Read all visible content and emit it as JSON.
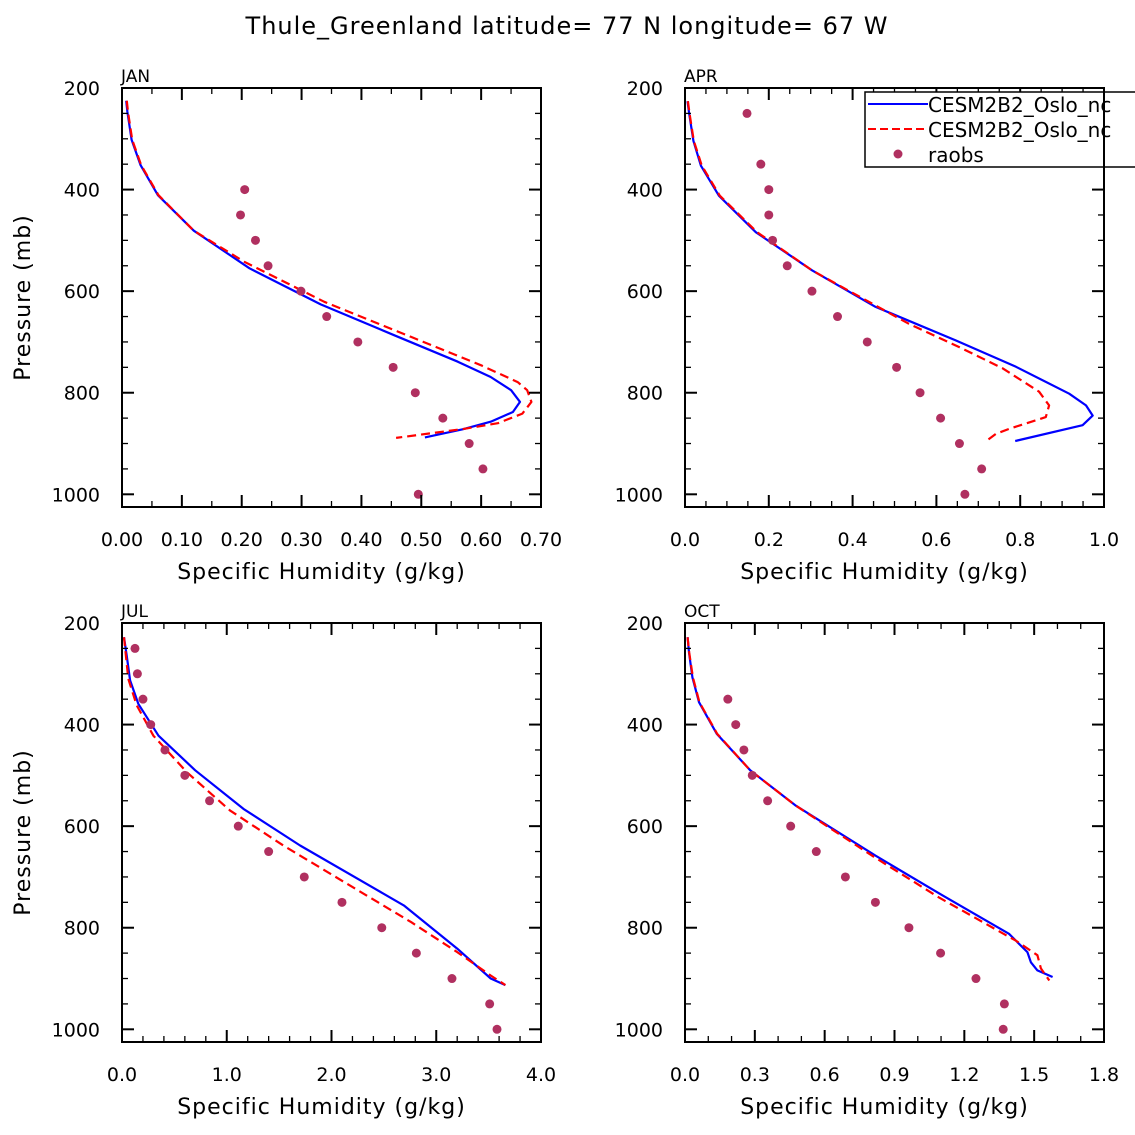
{
  "title": "Thule_Greenland  latitude= 77 N longitude= 67 W",
  "colors": {
    "model1": "#0000ff",
    "model2": "#ff0000",
    "raobs": "#b03060"
  },
  "legend": {
    "placement": "top-right of APR panel",
    "entries": [
      {
        "label": "CESM2B2_Oslo_nc",
        "style": "solid",
        "color": "#0000ff"
      },
      {
        "label": "CESM2B2_Oslo_nc",
        "style": "dashed",
        "color": "#ff0000"
      },
      {
        "label": "raobs",
        "style": "dot",
        "color": "#b03060"
      }
    ]
  },
  "chart_data": [
    {
      "type": "line",
      "panel_label": "JAN",
      "xlabel": "Specific Humidity (g/kg)",
      "ylabel": "Pressure (mb)",
      "xlim": [
        0,
        0.7
      ],
      "ylim": [
        200,
        1025
      ],
      "y_inverted": true,
      "xticks": [
        "0.00",
        "0.10",
        "0.20",
        "0.30",
        "0.40",
        "0.50",
        "0.60",
        "0.70"
      ],
      "xtick_values": [
        0,
        0.1,
        0.2,
        0.3,
        0.4,
        0.5,
        0.6,
        0.7
      ],
      "xminor": 0.05,
      "yticks": [
        "200",
        "400",
        "600",
        "800",
        "1000"
      ],
      "ytick_values": [
        200,
        400,
        600,
        800,
        1000
      ],
      "series": [
        {
          "name": "CESM2B2_Oslo_nc (solid)",
          "q": [
            0.007,
            0.009,
            0.016,
            0.031,
            0.06,
            0.12,
            0.213,
            0.332,
            0.455,
            0.561,
            0.616,
            0.65,
            0.665,
            0.653,
            0.616,
            0.569,
            0.506
          ],
          "p": [
            225,
            247,
            302,
            352,
            411,
            481,
            555,
            626,
            687,
            739,
            769,
            795,
            818,
            838,
            857,
            872,
            888
          ]
        },
        {
          "name": "CESM2B2_Oslo_nc (dashed)",
          "q": [
            0.008,
            0.01,
            0.017,
            0.032,
            0.061,
            0.12,
            0.204,
            0.338,
            0.483,
            0.6,
            0.661,
            0.677,
            0.684,
            0.669,
            0.628,
            0.572,
            0.458
          ],
          "p": [
            225,
            247,
            302,
            352,
            411,
            481,
            542,
            621,
            690,
            746,
            779,
            795,
            818,
            841,
            860,
            871,
            889
          ]
        },
        {
          "name": "raobs",
          "q": [
            0.205,
            0.198,
            0.223,
            0.244,
            0.299,
            0.342,
            0.394,
            0.453,
            0.49,
            0.536,
            0.58,
            0.603,
            0.495
          ],
          "p": [
            400,
            450,
            500,
            550,
            600,
            650,
            700,
            750,
            800,
            850,
            900,
            950,
            1000
          ]
        }
      ]
    },
    {
      "type": "line",
      "panel_label": "APR",
      "xlabel": "Specific Humidity (g/kg)",
      "ylabel": "",
      "xlim": [
        0,
        1.0
      ],
      "ylim": [
        200,
        1025
      ],
      "y_inverted": true,
      "xticks": [
        "0.0",
        "0.2",
        "0.4",
        "0.6",
        "0.8",
        "1.0"
      ],
      "xtick_values": [
        0,
        0.2,
        0.4,
        0.6,
        0.8,
        1.0
      ],
      "xminor": 0.05,
      "yticks": [
        "200",
        "400",
        "600",
        "800",
        "1000"
      ],
      "ytick_values": [
        200,
        400,
        600,
        800,
        1000
      ],
      "series": [
        {
          "name": "CESM2B2_Oslo_nc (solid)",
          "q": [
            0.006,
            0.01,
            0.02,
            0.038,
            0.081,
            0.169,
            0.303,
            0.455,
            0.646,
            0.79,
            0.917,
            0.957,
            0.973,
            0.949,
            0.788
          ],
          "p": [
            226,
            251,
            304,
            353,
            412,
            484,
            559,
            631,
            697,
            749,
            802,
            825,
            845,
            864,
            895
          ]
        },
        {
          "name": "CESM2B2_Oslo_nc (dashed)",
          "q": [
            0.007,
            0.011,
            0.021,
            0.04,
            0.083,
            0.172,
            0.303,
            0.375,
            0.534,
            0.654,
            0.758,
            0.845,
            0.869,
            0.861,
            0.774,
            0.742,
            0.716
          ],
          "p": [
            226,
            251,
            304,
            353,
            412,
            484,
            559,
            592,
            664,
            710,
            752,
            798,
            825,
            848,
            871,
            881,
            897
          ]
        },
        {
          "name": "raobs",
          "q": [
            0.148,
            0.181,
            0.2,
            0.2,
            0.209,
            0.244,
            0.303,
            0.364,
            0.435,
            0.505,
            0.561,
            0.61,
            0.655,
            0.708,
            0.668
          ],
          "p": [
            250,
            350,
            400,
            450,
            500,
            550,
            600,
            650,
            700,
            750,
            800,
            850,
            900,
            950,
            1000
          ]
        }
      ]
    },
    {
      "type": "line",
      "panel_label": "JUL",
      "xlabel": "Specific Humidity (g/kg)",
      "ylabel": "Pressure (mb)",
      "xlim": [
        0,
        4.0
      ],
      "ylim": [
        200,
        1025
      ],
      "y_inverted": true,
      "xticks": [
        "0.0",
        "1.0",
        "2.0",
        "3.0",
        "4.0"
      ],
      "xtick_values": [
        0,
        1,
        2,
        3,
        4
      ],
      "xminor": 0.2,
      "yticks": [
        "200",
        "400",
        "600",
        "800",
        "1000"
      ],
      "ytick_values": [
        200,
        400,
        600,
        800,
        1000
      ],
      "series": [
        {
          "name": "CESM2B2_Oslo_nc (solid)",
          "q": [
            0.019,
            0.045,
            0.077,
            0.156,
            0.348,
            0.699,
            1.16,
            1.7,
            2.69,
            3.2,
            3.52,
            3.66
          ],
          "p": [
            228,
            264,
            313,
            359,
            422,
            490,
            566,
            638,
            756,
            841,
            900,
            913
          ]
        },
        {
          "name": "CESM2B2_Oslo_nc (dashed)",
          "q": [
            0.019,
            0.06,
            0.14,
            0.3,
            0.62,
            1.03,
            1.54,
            2.12,
            2.76,
            3.2,
            3.52,
            3.66
          ],
          "p": [
            228,
            310,
            362,
            422,
            494,
            569,
            638,
            710,
            789,
            848,
            894,
            913
          ]
        },
        {
          "name": "raobs",
          "q": [
            0.124,
            0.147,
            0.2,
            0.274,
            0.41,
            0.6,
            0.836,
            1.11,
            1.4,
            1.74,
            2.1,
            2.48,
            2.81,
            3.15,
            3.51,
            3.58
          ],
          "p": [
            250,
            300,
            350,
            400,
            450,
            500,
            550,
            600,
            650,
            700,
            750,
            800,
            850,
            900,
            950,
            1000
          ]
        }
      ]
    },
    {
      "type": "line",
      "panel_label": "OCT",
      "xlabel": "Specific Humidity (g/kg)",
      "ylabel": "",
      "xlim": [
        0,
        1.8
      ],
      "ylim": [
        200,
        1025
      ],
      "y_inverted": true,
      "xticks": [
        "0.0",
        "0.3",
        "0.6",
        "0.9",
        "1.2",
        "1.5",
        "1.8"
      ],
      "xtick_values": [
        0,
        0.3,
        0.6,
        0.9,
        1.2,
        1.5,
        1.8
      ],
      "xminor": 0.1,
      "yticks": [
        "200",
        "400",
        "600",
        "800",
        "1000"
      ],
      "ytick_values": [
        200,
        400,
        600,
        800,
        1000
      ],
      "series": [
        {
          "name": "CESM2B2_Oslo_nc (solid)",
          "q": [
            0.011,
            0.017,
            0.032,
            0.06,
            0.136,
            0.28,
            0.474,
            0.818,
            1.105,
            1.392,
            1.471,
            1.486,
            1.514,
            1.579
          ],
          "p": [
            228,
            258,
            307,
            356,
            418,
            490,
            559,
            658,
            736,
            812,
            848,
            868,
            884,
            897
          ]
        },
        {
          "name": "CESM2B2_Oslo_nc (dashed)",
          "q": [
            0.011,
            0.018,
            0.034,
            0.062,
            0.138,
            0.28,
            0.474,
            0.81,
            1.09,
            1.38,
            1.42,
            1.514,
            1.529,
            1.565
          ],
          "p": [
            228,
            258,
            307,
            356,
            418,
            490,
            559,
            660,
            740,
            815,
            825,
            854,
            880,
            904
          ]
        },
        {
          "name": "raobs",
          "q": [
            0.184,
            0.218,
            0.253,
            0.289,
            0.355,
            0.454,
            0.564,
            0.689,
            0.818,
            0.962,
            1.098,
            1.25,
            1.372,
            1.367
          ],
          "p": [
            350,
            400,
            450,
            500,
            550,
            600,
            650,
            700,
            750,
            800,
            850,
            900,
            950,
            1000
          ]
        }
      ]
    }
  ]
}
